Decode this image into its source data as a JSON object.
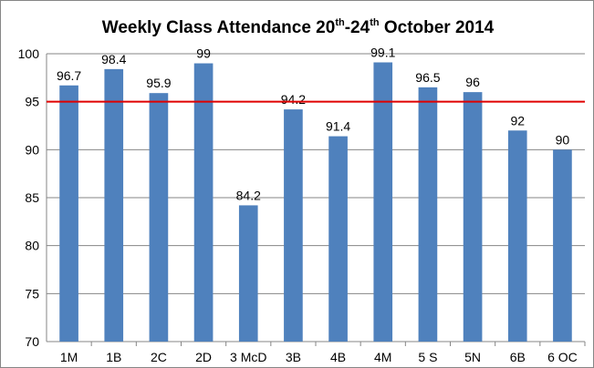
{
  "chart_data": {
    "type": "bar",
    "title": {
      "prefix": "Weekly Class Attendance 20",
      "sup1": "th",
      "middle": "-24",
      "sup2": "th",
      "suffix": " October 2014"
    },
    "categories": [
      "1M",
      "1B",
      "2C",
      "2D",
      "3 McD",
      "3B",
      "4B",
      "4M",
      "5 S",
      "5N",
      "6B",
      "6 OC"
    ],
    "values": [
      96.7,
      98.4,
      95.9,
      99,
      84.2,
      94.2,
      91.4,
      99.1,
      96.5,
      96,
      92,
      90
    ],
    "data_labels": [
      "96.7",
      "98.4",
      "95.9",
      "99",
      "84.2",
      "94.2",
      "91.4",
      "99.1",
      "96.5",
      "96",
      "92",
      "90"
    ],
    "ylim": [
      70,
      100
    ],
    "yticks": [
      70,
      75,
      80,
      85,
      90,
      95,
      100
    ],
    "xlabel": "",
    "ylabel": "",
    "grid": true,
    "target_line": 95,
    "colors": {
      "bar": "#4f81bd",
      "target": "#e00000",
      "grid": "#868686"
    }
  }
}
